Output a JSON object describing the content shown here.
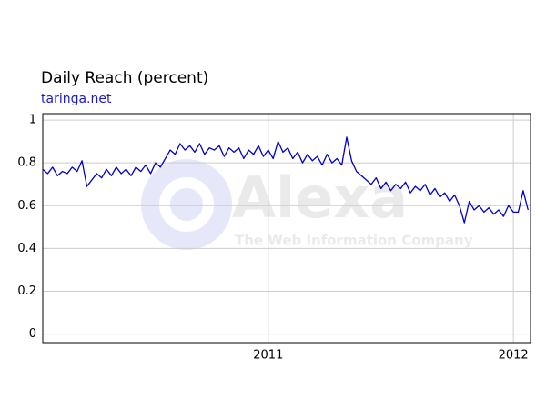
{
  "chart_data": {
    "type": "line",
    "title": "Daily Reach (percent)",
    "subtitle": "taringa.net",
    "watermark": "Alexa",
    "watermark_tagline": "The Web Information Company",
    "color": "#0000cc",
    "grid": true,
    "xlim": [
      2010.08,
      2012.07
    ],
    "xticks": [
      2011,
      2012
    ],
    "ylim": [
      -0.04,
      1.03
    ],
    "yticks": [
      0,
      0.2,
      0.4,
      0.6,
      0.8,
      1
    ],
    "x": [
      2010.08,
      2010.1,
      2010.12,
      2010.14,
      2010.16,
      2010.18,
      2010.2,
      2010.22,
      2010.24,
      2010.26,
      2010.28,
      2010.3,
      2010.32,
      2010.34,
      2010.36,
      2010.38,
      2010.4,
      2010.42,
      2010.44,
      2010.46,
      2010.48,
      2010.5,
      2010.52,
      2010.54,
      2010.56,
      2010.58,
      2010.6,
      2010.62,
      2010.64,
      2010.66,
      2010.68,
      2010.7,
      2010.72,
      2010.74,
      2010.76,
      2010.78,
      2010.8,
      2010.82,
      2010.84,
      2010.86,
      2010.88,
      2010.9,
      2010.92,
      2010.94,
      2010.96,
      2010.98,
      2011.0,
      2011.02,
      2011.04,
      2011.06,
      2011.08,
      2011.1,
      2011.12,
      2011.14,
      2011.16,
      2011.18,
      2011.2,
      2011.22,
      2011.24,
      2011.26,
      2011.28,
      2011.3,
      2011.32,
      2011.34,
      2011.36,
      2011.38,
      2011.4,
      2011.42,
      2011.44,
      2011.46,
      2011.48,
      2011.5,
      2011.52,
      2011.54,
      2011.56,
      2011.58,
      2011.6,
      2011.62,
      2011.64,
      2011.66,
      2011.68,
      2011.7,
      2011.72,
      2011.74,
      2011.76,
      2011.78,
      2011.8,
      2011.82,
      2011.84,
      2011.86,
      2011.88,
      2011.9,
      2011.92,
      2011.94,
      2011.96,
      2011.98,
      2012.0,
      2012.02,
      2012.04,
      2012.06
    ],
    "values": [
      0.77,
      0.75,
      0.78,
      0.74,
      0.76,
      0.75,
      0.78,
      0.76,
      0.81,
      0.69,
      0.72,
      0.75,
      0.73,
      0.77,
      0.74,
      0.78,
      0.75,
      0.77,
      0.74,
      0.78,
      0.76,
      0.79,
      0.75,
      0.8,
      0.78,
      0.82,
      0.86,
      0.84,
      0.89,
      0.86,
      0.88,
      0.85,
      0.89,
      0.84,
      0.87,
      0.86,
      0.88,
      0.83,
      0.87,
      0.85,
      0.87,
      0.82,
      0.86,
      0.84,
      0.88,
      0.83,
      0.86,
      0.82,
      0.9,
      0.85,
      0.87,
      0.82,
      0.85,
      0.8,
      0.84,
      0.81,
      0.83,
      0.79,
      0.84,
      0.8,
      0.82,
      0.79,
      0.92,
      0.81,
      0.76,
      0.74,
      0.72,
      0.7,
      0.73,
      0.68,
      0.71,
      0.67,
      0.7,
      0.68,
      0.71,
      0.66,
      0.69,
      0.67,
      0.7,
      0.65,
      0.68,
      0.64,
      0.66,
      0.62,
      0.65,
      0.6,
      0.52,
      0.62,
      0.58,
      0.6,
      0.57,
      0.59,
      0.56,
      0.58,
      0.55,
      0.6,
      0.57,
      0.57,
      0.67,
      0.58
    ]
  }
}
